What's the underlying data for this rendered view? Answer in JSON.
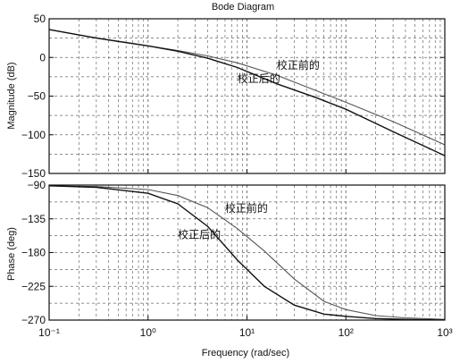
{
  "chart_data": [
    {
      "type": "line",
      "title": "Bode Diagram",
      "ylabel": "Magnitude (dB)",
      "xscale": "log",
      "xlim": [
        0.1,
        1000
      ],
      "ylim": [
        -150,
        50
      ],
      "grid": true,
      "x_ticks": [
        0.1,
        1,
        10,
        100,
        1000
      ],
      "x_tick_labels": [
        "",
        "",
        "",
        "",
        ""
      ],
      "y_ticks": [
        50,
        0,
        -50,
        -100,
        -150
      ],
      "y_tick_labels": [
        "50",
        "0",
        "−50",
        "−100",
        "−150"
      ],
      "series": [
        {
          "name": "校正前的",
          "x": [
            0.1,
            0.3,
            1,
            2,
            4,
            8,
            20,
            50,
            100,
            300,
            1000
          ],
          "y": [
            36,
            25,
            15,
            9,
            2,
            -7,
            -23,
            -43,
            -58,
            -83,
            -113
          ]
        },
        {
          "name": "校正后的",
          "x": [
            0.1,
            0.3,
            1,
            2,
            4,
            8,
            20,
            50,
            100,
            300,
            1000
          ],
          "y": [
            36,
            25,
            15,
            8,
            -1,
            -13,
            -34,
            -52,
            -67,
            -96,
            -127
          ]
        }
      ],
      "annotations": [
        {
          "text": "校正前的",
          "x": 20,
          "y": -15
        },
        {
          "text": "校正后的",
          "x": 8,
          "y": -32
        }
      ]
    },
    {
      "type": "line",
      "xlabel": "Frequency  (rad/sec)",
      "ylabel": "Phase (deg)",
      "xscale": "log",
      "xlim": [
        0.1,
        1000
      ],
      "ylim": [
        -270,
        -90
      ],
      "grid": true,
      "x_ticks": [
        0.1,
        1,
        10,
        100,
        1000
      ],
      "x_tick_labels": [
        "10⁻¹",
        "10⁰",
        "10¹",
        "10²",
        "10³"
      ],
      "y_ticks": [
        -90,
        -135,
        -180,
        -225,
        -270
      ],
      "y_tick_labels": [
        "−90",
        "−135",
        "−180",
        "−225",
        "−270"
      ],
      "series": [
        {
          "name": "校正前的",
          "x": [
            0.1,
            0.3,
            1,
            2,
            4,
            8,
            15,
            30,
            60,
            100,
            200,
            400,
            1000
          ],
          "y": [
            -91,
            -92,
            -96,
            -104,
            -120,
            -148,
            -178,
            -215,
            -245,
            -256,
            -264,
            -267,
            -269
          ]
        },
        {
          "name": "校正后的",
          "x": [
            0.1,
            0.3,
            1,
            2,
            4,
            8,
            15,
            30,
            60,
            100,
            200,
            400,
            1000
          ],
          "y": [
            -91,
            -93,
            -101,
            -115,
            -145,
            -190,
            -225,
            -250,
            -262,
            -265,
            -268,
            -269,
            -270
          ]
        }
      ],
      "annotations": [
        {
          "text": "校正前的",
          "x": 6,
          "y": -126
        },
        {
          "text": "校正后的",
          "x": 2,
          "y": -161
        }
      ]
    }
  ]
}
